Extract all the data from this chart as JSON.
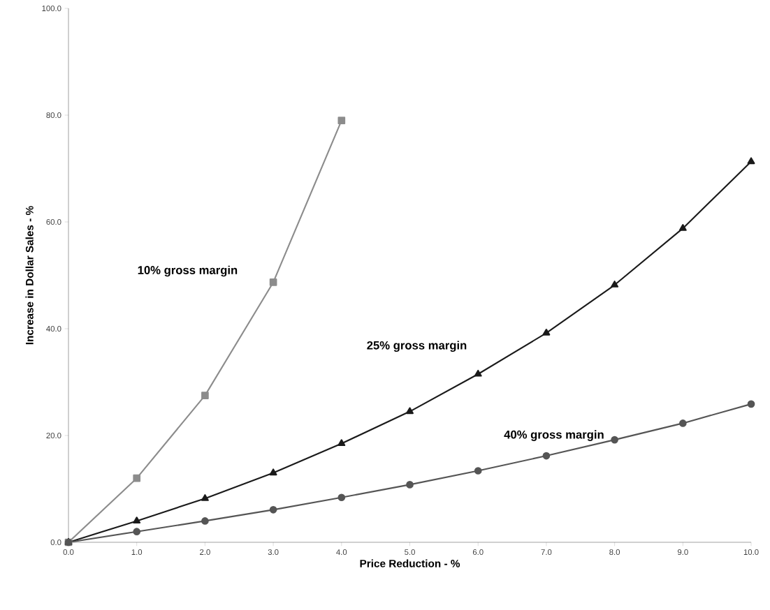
{
  "chart_data": {
    "type": "line",
    "xlabel": "Price Reduction - %",
    "ylabel": "Increase in Dollar Sales - %",
    "x": [
      0,
      1,
      2,
      3,
      4,
      5,
      6,
      7,
      8,
      9,
      10
    ],
    "series": [
      {
        "name": "10% gross margin",
        "color": "#8c8c8c",
        "marker": "square",
        "values": [
          0,
          12.0,
          27.5,
          48.7,
          79.0,
          null,
          null,
          null,
          null,
          null,
          null
        ]
      },
      {
        "name": "25% gross margin",
        "color": "#1a1a1a",
        "marker": "triangle",
        "values": [
          0,
          4.0,
          8.2,
          13.0,
          18.5,
          24.5,
          31.5,
          39.2,
          48.2,
          58.8,
          71.3
        ]
      },
      {
        "name": "40% gross margin",
        "color": "#555555",
        "marker": "circle",
        "values": [
          0,
          2.0,
          4.0,
          6.1,
          8.4,
          10.8,
          13.4,
          16.2,
          19.2,
          22.3,
          25.9
        ]
      }
    ],
    "xlim": [
      0,
      10
    ],
    "ylim": [
      0,
      100
    ],
    "xticks": [
      {
        "value": 0,
        "label": "0.0"
      },
      {
        "value": 1,
        "label": "1.0"
      },
      {
        "value": 2,
        "label": "2.0"
      },
      {
        "value": 3,
        "label": "3.0"
      },
      {
        "value": 4,
        "label": "4.0"
      },
      {
        "value": 5,
        "label": "5.0"
      },
      {
        "value": 6,
        "label": "6.0"
      },
      {
        "value": 7,
        "label": "7.0"
      },
      {
        "value": 8,
        "label": "8.0"
      },
      {
        "value": 9,
        "label": "9.0"
      },
      {
        "value": 10,
        "label": "10.0"
      }
    ],
    "yticks": [
      {
        "value": 0,
        "label": "0.0"
      },
      {
        "value": 20,
        "label": "20.0"
      },
      {
        "value": 40,
        "label": "40.0"
      },
      {
        "value": 60,
        "label": "60.0"
      },
      {
        "value": 80,
        "label": "80.0"
      },
      {
        "value": 100,
        "label": "100.0"
      }
    ],
    "grid": false,
    "line_style": "solid"
  }
}
